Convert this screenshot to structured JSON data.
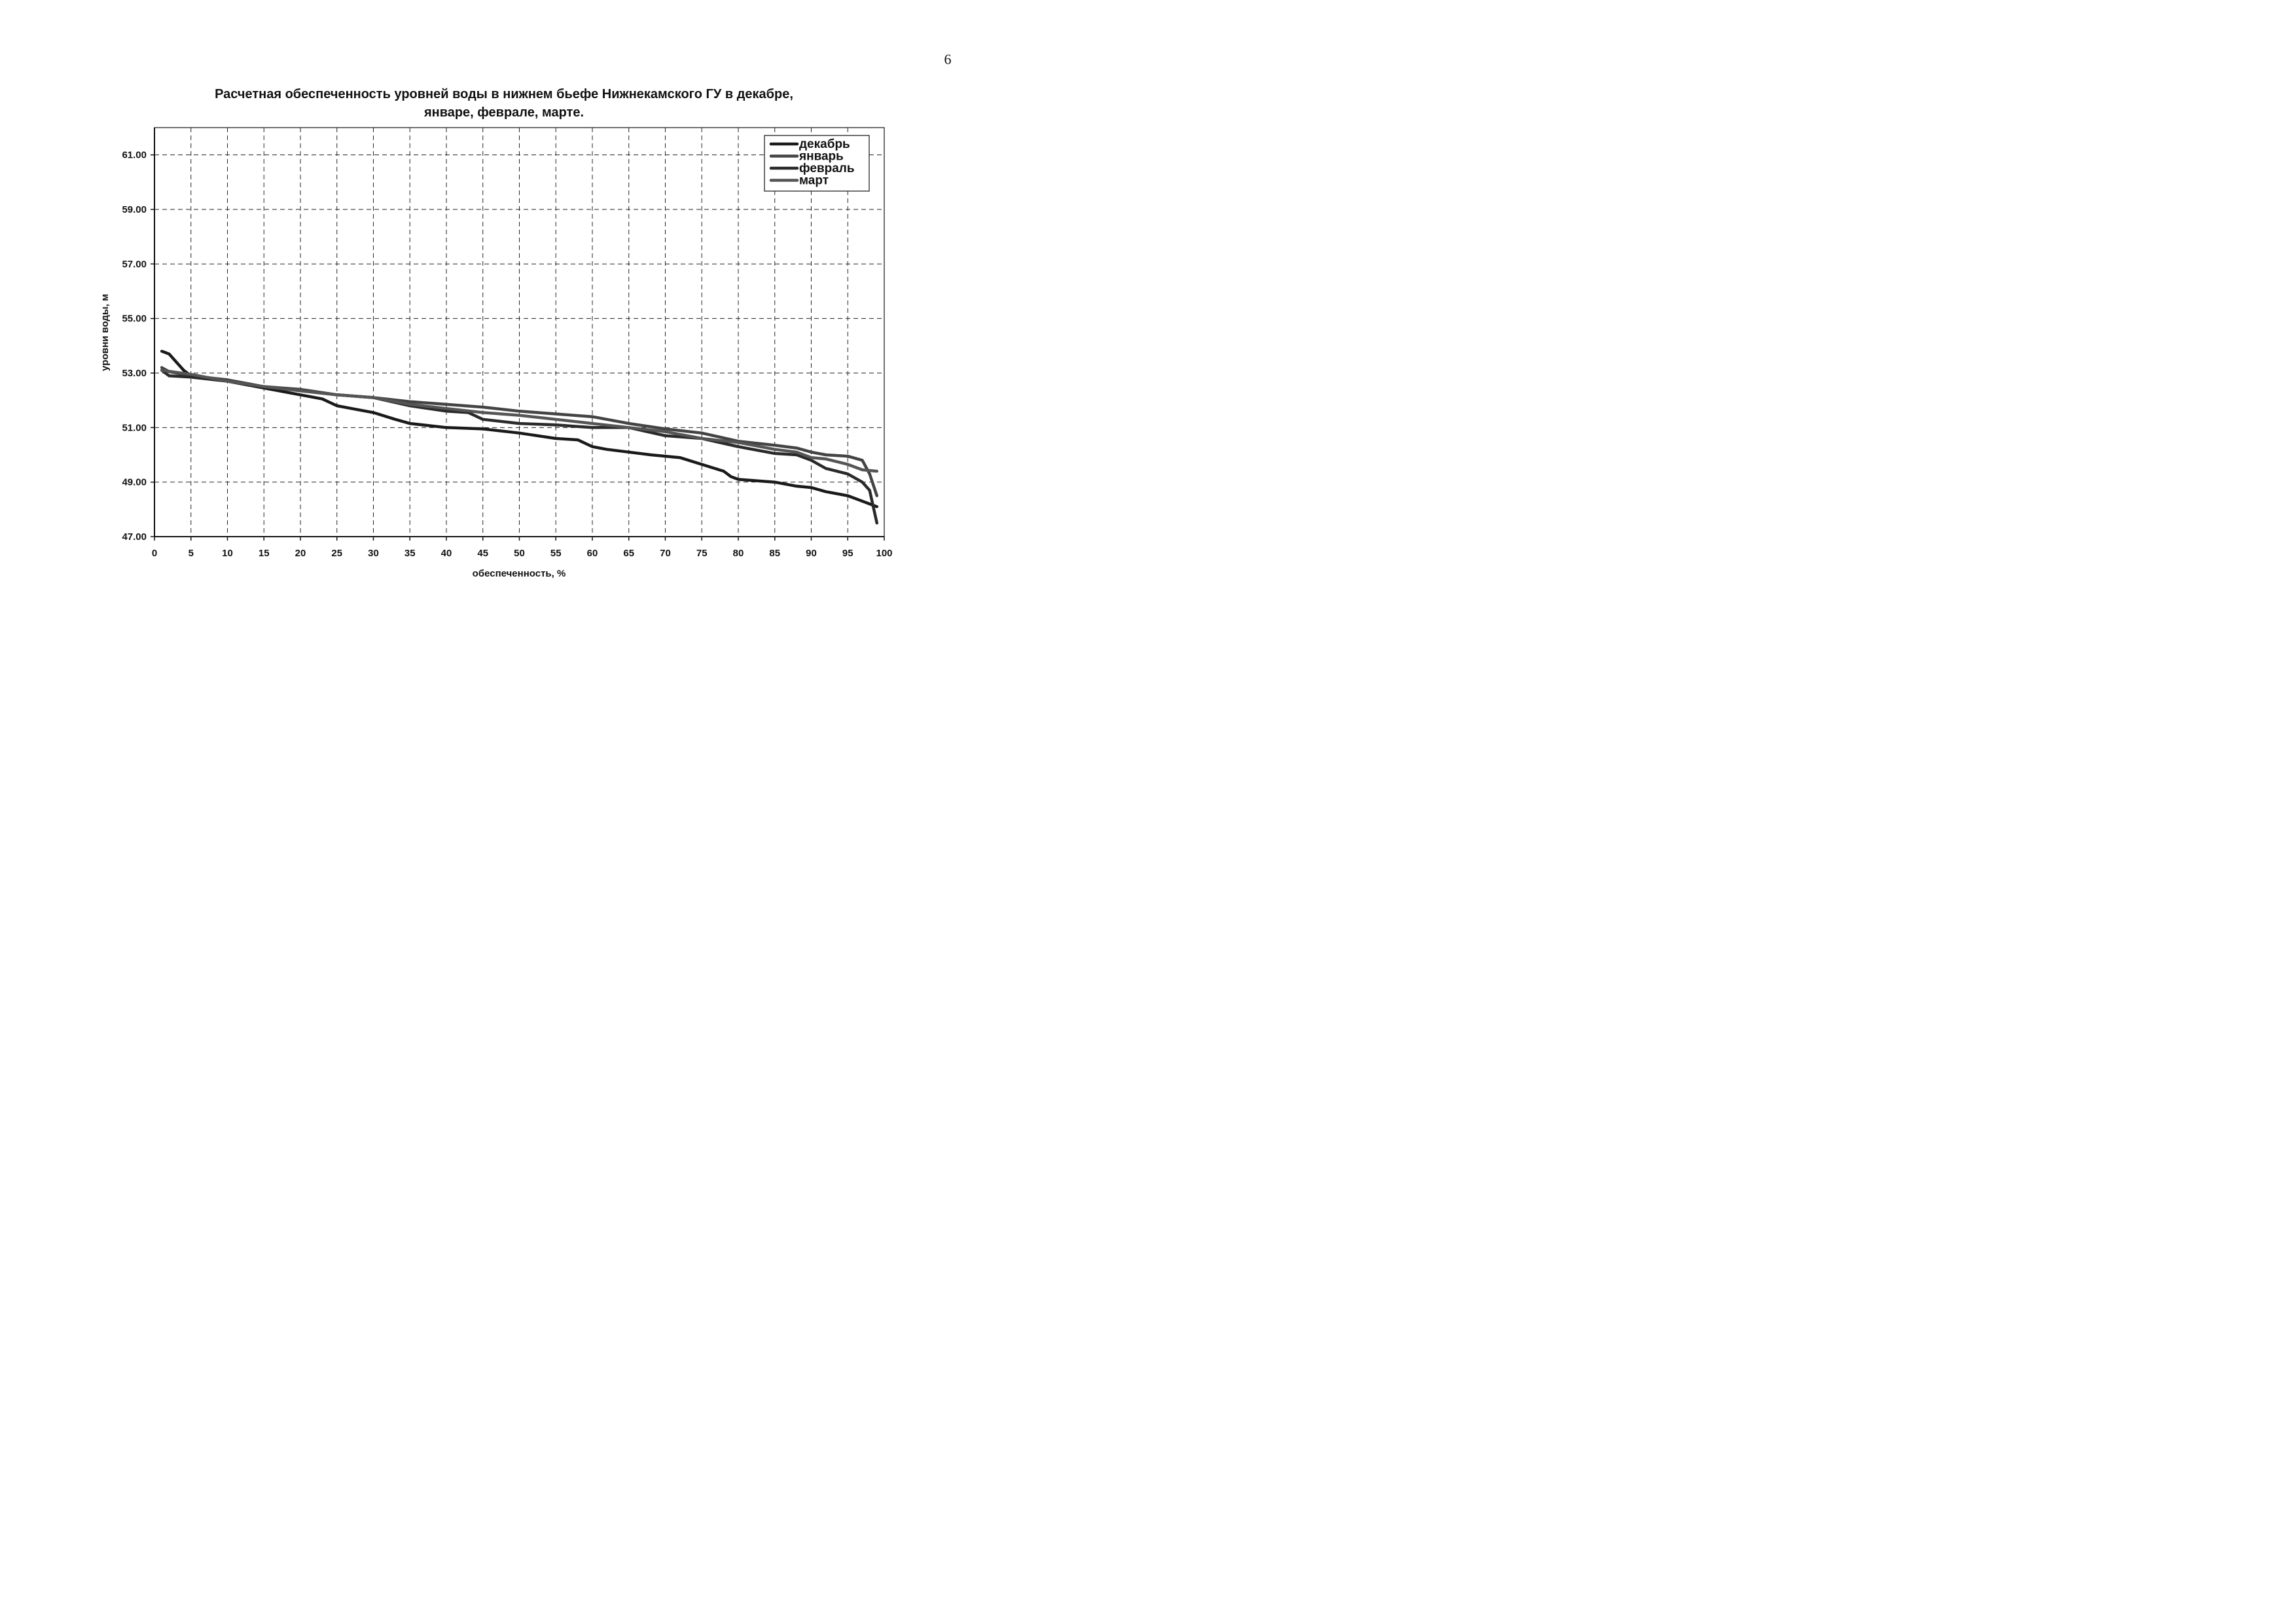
{
  "page": {
    "number": "6"
  },
  "chart_data": {
    "type": "line",
    "title_lines": [
      "Расчетная обеспеченность уровней воды в нижнем бьефе Нижнекамского ГУ в декабре,",
      "январе, феврале, марте."
    ],
    "xlabel": "обеспеченность, %",
    "ylabel": "уровни воды, м",
    "xlim": [
      0,
      100
    ],
    "ylim": [
      47,
      62
    ],
    "x_ticks": [
      0,
      5,
      10,
      15,
      20,
      25,
      30,
      35,
      40,
      45,
      50,
      55,
      60,
      65,
      70,
      75,
      80,
      85,
      90,
      95,
      100
    ],
    "x_tick_labels": [
      "0",
      "5",
      "10",
      "15",
      "20",
      "25",
      "30",
      "35",
      "40",
      "45",
      "50",
      "55",
      "60",
      "65",
      "70",
      "75",
      "80",
      "85",
      "90",
      "95",
      "100"
    ],
    "y_ticks": [
      47,
      49,
      51,
      53,
      55,
      57,
      59,
      61
    ],
    "y_tick_labels": [
      "47.00",
      "49.00",
      "51.00",
      "53.00",
      "55.00",
      "57.00",
      "59.00",
      "61.00"
    ],
    "grid": true,
    "legend_position": "top-right",
    "series": [
      {
        "name": "декабрь",
        "color": "#1a1a1a",
        "x": [
          1,
          2,
          3,
          4,
          5,
          10,
          15,
          20,
          23,
          25,
          27,
          30,
          33,
          35,
          40,
          45,
          50,
          55,
          58,
          60,
          62,
          65,
          68,
          70,
          72,
          75,
          78,
          79,
          80,
          85,
          88,
          90,
          92,
          95,
          97,
          98,
          99
        ],
        "y": [
          53.8,
          53.7,
          53.4,
          53.1,
          52.9,
          52.7,
          52.45,
          52.2,
          52.05,
          51.8,
          51.7,
          51.55,
          51.3,
          51.15,
          51.0,
          50.95,
          50.8,
          50.6,
          50.55,
          50.3,
          50.2,
          50.1,
          50.0,
          49.95,
          49.9,
          49.65,
          49.4,
          49.2,
          49.1,
          49.0,
          48.85,
          48.8,
          48.65,
          48.5,
          48.3,
          48.2,
          48.1
        ]
      },
      {
        "name": "январь",
        "color": "#444444",
        "x": [
          1,
          2,
          5,
          10,
          15,
          20,
          25,
          30,
          35,
          40,
          45,
          50,
          55,
          60,
          65,
          70,
          75,
          80,
          85,
          88,
          90,
          92,
          95,
          97,
          98,
          99
        ],
        "y": [
          53.2,
          53.05,
          52.9,
          52.75,
          52.5,
          52.4,
          52.2,
          52.1,
          51.95,
          51.85,
          51.75,
          51.6,
          51.5,
          51.4,
          51.15,
          50.95,
          50.8,
          50.5,
          50.35,
          50.25,
          50.1,
          50.0,
          49.95,
          49.8,
          49.3,
          48.5
        ]
      },
      {
        "name": "февраль",
        "color": "#2a2a2a",
        "x": [
          1,
          2,
          5,
          10,
          15,
          20,
          25,
          30,
          35,
          40,
          43,
          45,
          50,
          55,
          60,
          65,
          70,
          75,
          80,
          85,
          88,
          90,
          92,
          95,
          97,
          98,
          99
        ],
        "y": [
          53.1,
          52.9,
          52.85,
          52.7,
          52.5,
          52.35,
          52.2,
          52.1,
          51.8,
          51.6,
          51.55,
          51.3,
          51.15,
          51.1,
          51.0,
          51.0,
          50.7,
          50.6,
          50.3,
          50.05,
          50.0,
          49.8,
          49.5,
          49.3,
          49.0,
          48.7,
          47.5
        ]
      },
      {
        "name": "март",
        "color": "#555555",
        "x": [
          1,
          5,
          10,
          15,
          20,
          25,
          30,
          35,
          40,
          45,
          50,
          55,
          60,
          65,
          70,
          75,
          80,
          85,
          88,
          90,
          92,
          95,
          97,
          99
        ],
        "y": [
          53.1,
          52.95,
          52.7,
          52.5,
          52.35,
          52.2,
          52.1,
          51.85,
          51.7,
          51.55,
          51.45,
          51.3,
          51.15,
          51.0,
          50.85,
          50.6,
          50.45,
          50.2,
          50.1,
          49.9,
          49.85,
          49.65,
          49.45,
          49.4
        ]
      }
    ]
  }
}
